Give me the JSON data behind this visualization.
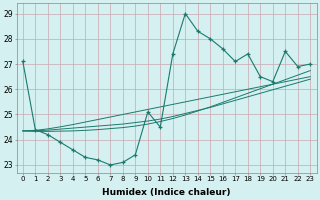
{
  "x": [
    0,
    1,
    2,
    3,
    4,
    5,
    6,
    7,
    8,
    9,
    10,
    11,
    12,
    13,
    14,
    15,
    16,
    17,
    18,
    19,
    20,
    21,
    22,
    23
  ],
  "y_main": [
    27.1,
    24.4,
    24.2,
    23.9,
    23.6,
    23.3,
    23.2,
    23.0,
    23.1,
    23.4,
    25.1,
    24.5,
    27.4,
    29.0,
    28.3,
    28.0,
    27.6,
    27.1,
    27.4,
    26.5,
    26.3,
    27.5,
    26.9,
    27.0
  ],
  "y_reg1": [
    24.35,
    24.35,
    24.38,
    24.42,
    24.46,
    24.5,
    24.54,
    24.58,
    24.62,
    24.68,
    24.74,
    24.82,
    24.92,
    25.04,
    25.16,
    25.28,
    25.42,
    25.56,
    25.7,
    25.84,
    25.98,
    26.12,
    26.26,
    26.4
  ],
  "y_reg2": [
    24.35,
    24.37,
    24.43,
    24.51,
    24.6,
    24.7,
    24.8,
    24.9,
    25.0,
    25.1,
    25.2,
    25.3,
    25.4,
    25.5,
    25.6,
    25.7,
    25.8,
    25.9,
    26.0,
    26.1,
    26.2,
    26.3,
    26.4,
    26.5
  ],
  "y_reg3": [
    24.35,
    24.33,
    24.33,
    24.34,
    24.35,
    24.37,
    24.4,
    24.44,
    24.48,
    24.54,
    24.62,
    24.72,
    24.84,
    24.98,
    25.14,
    25.3,
    25.48,
    25.66,
    25.84,
    26.02,
    26.2,
    26.38,
    26.56,
    26.74
  ],
  "line_color": "#1a7a6e",
  "bg_color": "#d5f0f0",
  "grid_color": "#c8e8e8",
  "xlabel": "Humidex (Indice chaleur)",
  "ylim": [
    22.7,
    29.4
  ],
  "xlim": [
    -0.5,
    23.5
  ],
  "yticks": [
    23,
    24,
    25,
    26,
    27,
    28,
    29
  ],
  "xticks": [
    0,
    1,
    2,
    3,
    4,
    5,
    6,
    7,
    8,
    9,
    10,
    11,
    12,
    13,
    14,
    15,
    16,
    17,
    18,
    19,
    20,
    21,
    22,
    23
  ]
}
